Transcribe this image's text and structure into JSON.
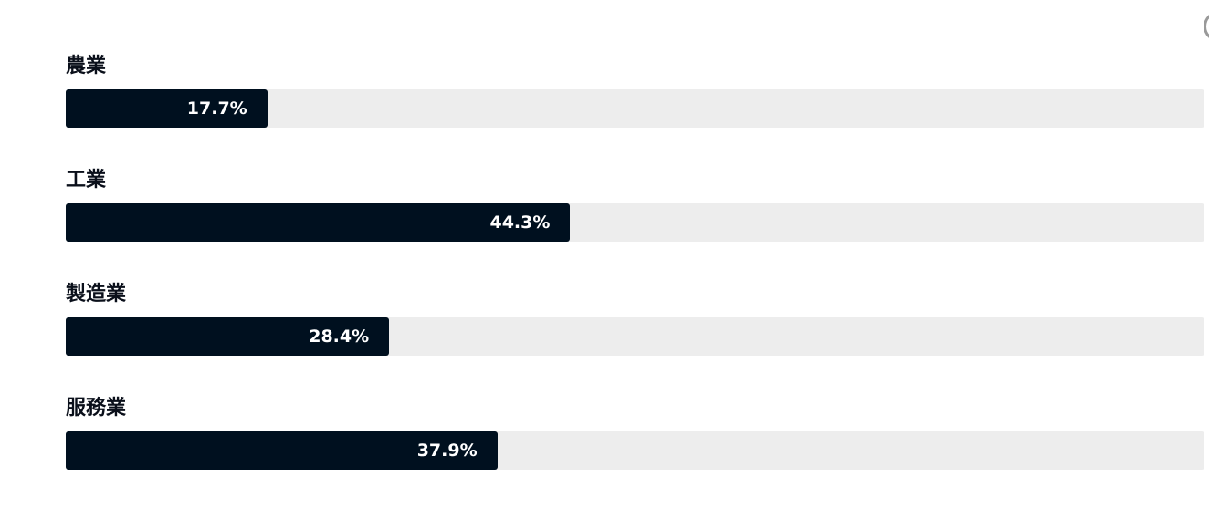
{
  "chart_data": {
    "type": "bar",
    "orientation": "horizontal",
    "categories": [
      "農業",
      "工業",
      "製造業",
      "服務業"
    ],
    "values": [
      17.7,
      44.3,
      28.4,
      37.9
    ],
    "value_labels": [
      "17.7%",
      "44.3%",
      "28.4%",
      "37.9%"
    ],
    "unit": "%",
    "xlim": [
      0,
      100
    ],
    "bar_color": "#00101f",
    "track_color": "#ededed",
    "grid": false,
    "legend": "none"
  }
}
